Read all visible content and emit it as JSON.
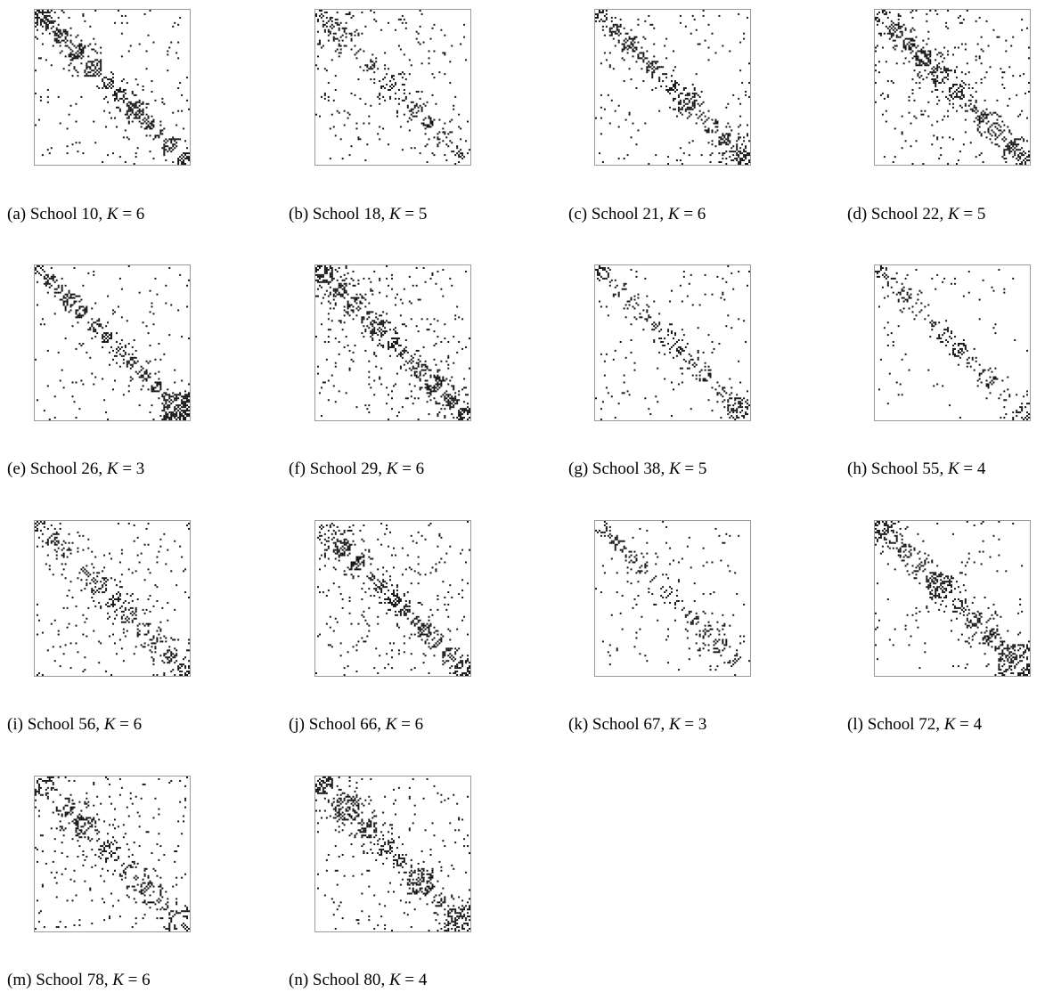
{
  "figure": {
    "panels": [
      {
        "label": "(a)",
        "school": "School 10",
        "k_text": "K",
        "k_value": "= 6",
        "k": 6,
        "density": 0.6,
        "noise": 0.04
      },
      {
        "label": "(b)",
        "school": "School 18",
        "k_text": "K",
        "k_value": "= 5",
        "k": 5,
        "density": 0.3,
        "noise": 0.035
      },
      {
        "label": "(c)",
        "school": "School 21",
        "k_text": "K",
        "k_value": "= 6",
        "k": 6,
        "density": 0.5,
        "noise": 0.035
      },
      {
        "label": "(d)",
        "school": "School 22",
        "k_text": "K",
        "k_value": "= 5",
        "k": 5,
        "density": 0.55,
        "noise": 0.05
      },
      {
        "label": "(e)",
        "school": "School 26",
        "k_text": "K",
        "k_value": "= 3",
        "k": 3,
        "density": 0.55,
        "noise": 0.03
      },
      {
        "label": "(f)",
        "school": "School 29",
        "k_text": "K",
        "k_value": "= 6",
        "k": 6,
        "density": 0.55,
        "noise": 0.05
      },
      {
        "label": "(g)",
        "school": "School 38",
        "k_text": "K",
        "k_value": "= 5",
        "k": 5,
        "density": 0.35,
        "noise": 0.03
      },
      {
        "label": "(h)",
        "school": "School 55",
        "k_text": "K",
        "k_value": "= 4",
        "k": 4,
        "density": 0.3,
        "noise": 0.02
      },
      {
        "label": "(i)",
        "school": "School 56",
        "k_text": "K",
        "k_value": "= 6",
        "k": 6,
        "density": 0.4,
        "noise": 0.04
      },
      {
        "label": "(j)",
        "school": "School 66",
        "k_text": "K",
        "k_value": "= 6",
        "k": 6,
        "density": 0.5,
        "noise": 0.06
      },
      {
        "label": "(k)",
        "school": "School 67",
        "k_text": "K",
        "k_value": "= 3",
        "k": 3,
        "density": 0.3,
        "noise": 0.02
      },
      {
        "label": "(l)",
        "school": "School 72",
        "k_text": "K",
        "k_value": "= 4",
        "k": 4,
        "density": 0.45,
        "noise": 0.03
      },
      {
        "label": "(m)",
        "school": "School 78",
        "k_text": "K",
        "k_value": "= 6",
        "k": 6,
        "density": 0.35,
        "noise": 0.03
      },
      {
        "label": "(n)",
        "school": "School 80",
        "k_text": "K",
        "k_value": "= 4",
        "k": 4,
        "density": 0.45,
        "noise": 0.035
      }
    ]
  }
}
